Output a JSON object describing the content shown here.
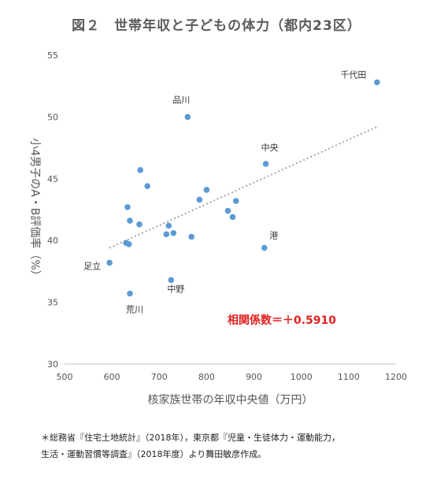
{
  "chart_data": {
    "type": "scatter",
    "title": "図２　世帯年収と子どもの体力（都内23区）",
    "xlabel": "核家族世帯の年収中央値（万円）",
    "ylabel": "小4男子のA・B評価率（%）",
    "xlim": [
      500,
      1200
    ],
    "ylim": [
      30,
      55
    ],
    "x_ticks": [
      500,
      600,
      700,
      800,
      900,
      1000,
      1100,
      1200
    ],
    "y_ticks": [
      30,
      35,
      40,
      45,
      50,
      55
    ],
    "grid": false,
    "points": [
      {
        "x": 1160,
        "y": 52.8,
        "label": "千代田"
      },
      {
        "x": 760,
        "y": 50.0,
        "label": "品川"
      },
      {
        "x": 925,
        "y": 46.2,
        "label": "中央"
      },
      {
        "x": 660,
        "y": 45.7,
        "label": ""
      },
      {
        "x": 675,
        "y": 44.4,
        "label": ""
      },
      {
        "x": 800,
        "y": 44.1,
        "label": ""
      },
      {
        "x": 785,
        "y": 43.3,
        "label": ""
      },
      {
        "x": 862,
        "y": 43.2,
        "label": ""
      },
      {
        "x": 633,
        "y": 42.7,
        "label": ""
      },
      {
        "x": 845,
        "y": 42.4,
        "label": ""
      },
      {
        "x": 855,
        "y": 41.9,
        "label": ""
      },
      {
        "x": 638,
        "y": 41.6,
        "label": ""
      },
      {
        "x": 658,
        "y": 41.3,
        "label": ""
      },
      {
        "x": 720,
        "y": 41.2,
        "label": ""
      },
      {
        "x": 730,
        "y": 40.6,
        "label": ""
      },
      {
        "x": 715,
        "y": 40.5,
        "label": ""
      },
      {
        "x": 768,
        "y": 40.3,
        "label": ""
      },
      {
        "x": 630,
        "y": 39.8,
        "label": ""
      },
      {
        "x": 636,
        "y": 39.7,
        "label": ""
      },
      {
        "x": 922,
        "y": 39.4,
        "label": "港"
      },
      {
        "x": 595,
        "y": 38.2,
        "label": "足立"
      },
      {
        "x": 725,
        "y": 36.8,
        "label": "中野"
      },
      {
        "x": 638,
        "y": 35.7,
        "label": "荒川"
      }
    ],
    "trendline": {
      "x": [
        595,
        1160
      ],
      "y": [
        39.4,
        49.2
      ]
    },
    "annotation": "相関係数＝＋0.5910",
    "point_color": "#5b9bd5",
    "trend_color": "#a6a6a6",
    "annotation_color": "#e02020"
  },
  "footnote": {
    "line1": "＊総務省『住宅土地統計』（2018年），東京都『児童・生徒体力・運動能力，",
    "line2": "生活・運動習慣等調査』（2018年度）より舞田敏彦作成。"
  }
}
